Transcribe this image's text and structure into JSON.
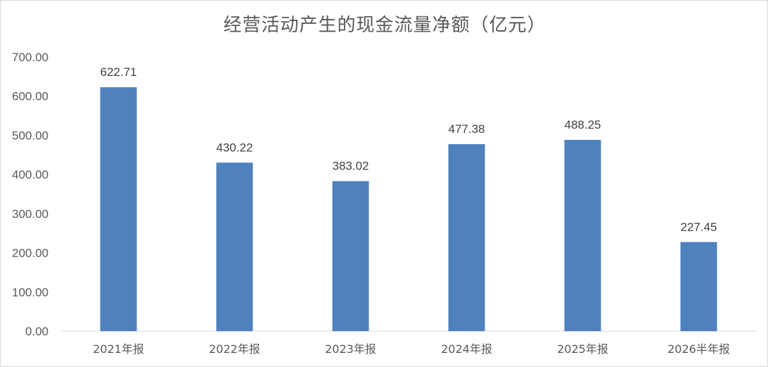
{
  "chart_data": {
    "type": "bar",
    "title": "经营活动产生的现金流量净额（亿元）",
    "categories": [
      "2021年报",
      "2022年报",
      "2023年报",
      "2024年报",
      "2025年报",
      "2026半年报"
    ],
    "values": [
      622.71,
      430.22,
      383.02,
      477.38,
      488.25,
      227.45
    ],
    "value_labels": [
      "622.71",
      "430.22",
      "383.02",
      "477.38",
      "488.25",
      "227.45"
    ],
    "ylim": [
      0,
      700
    ],
    "yticks": [
      "0.00",
      "100.00",
      "200.00",
      "300.00",
      "400.00",
      "500.00",
      "600.00",
      "700.00"
    ],
    "xlabel": "",
    "ylabel": "",
    "grid": false,
    "legend": "none",
    "bar_color": "#4f81bd"
  }
}
